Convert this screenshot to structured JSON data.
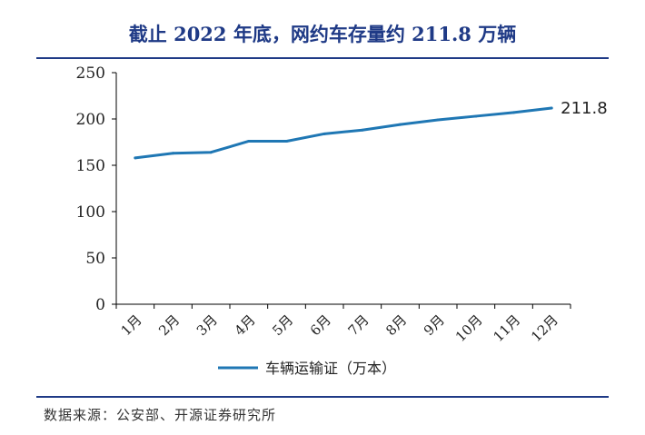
{
  "title": "截止 2022 年底，网约车存量约 211.8 万辆",
  "source": "数据来源：公安部、开源证券研究所",
  "colors": {
    "title": "#1f3a86",
    "line": "#1f77b4",
    "axis": "#000000"
  },
  "chart_data": {
    "type": "line",
    "categories": [
      "1月",
      "2月",
      "3月",
      "4月",
      "5月",
      "6月",
      "7月",
      "8月",
      "9月",
      "10月",
      "11月",
      "12月"
    ],
    "series": [
      {
        "name": "车辆运输证（万本）",
        "values": [
          158,
          163,
          164,
          176,
          176,
          184,
          188,
          194,
          199,
          203,
          207,
          211.8
        ]
      }
    ],
    "ylim": [
      0,
      250
    ],
    "yticks": [
      0,
      50,
      100,
      150,
      200,
      250
    ],
    "data_labels": [
      {
        "index": 11,
        "text": "211.8"
      }
    ],
    "grid": false,
    "legend": "bottom"
  }
}
